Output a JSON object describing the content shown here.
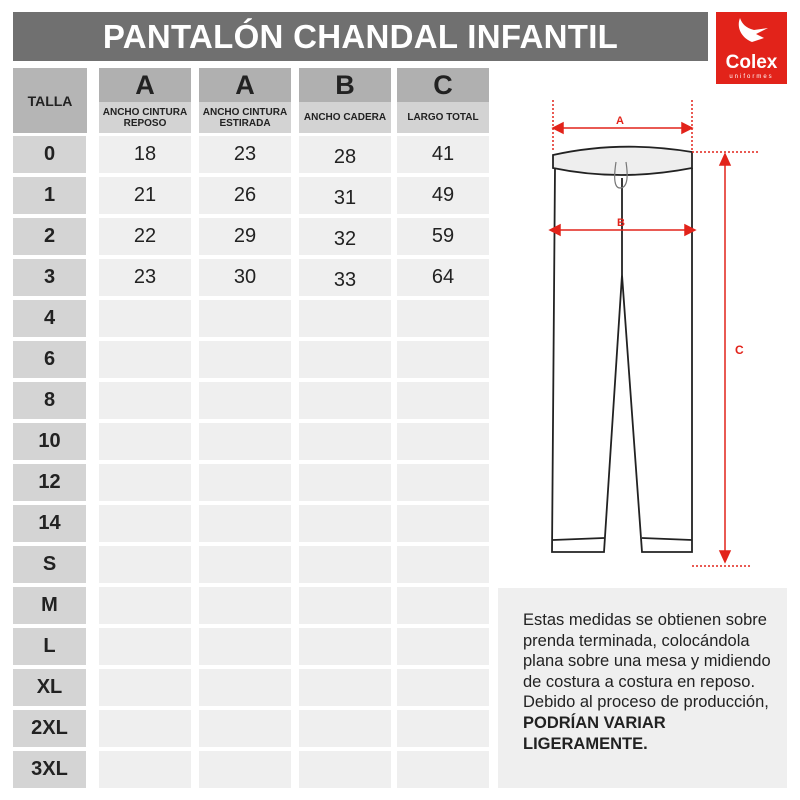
{
  "title": "PANTALÓN CHANDAL INFANTIL",
  "logo": {
    "brand": "Colex",
    "sub": "uniformes",
    "color": "#e2231a"
  },
  "table": {
    "size_header": "TALLA",
    "columns": [
      {
        "letter": "A",
        "label": "ANCHO CINTURA REPOSO"
      },
      {
        "letter": "A",
        "label": "ANCHO CINTURA ESTIRADA"
      },
      {
        "letter": "B",
        "label": "ANCHO CADERA"
      },
      {
        "letter": "C",
        "label": "LARGO TOTAL"
      }
    ],
    "rows": [
      {
        "size": "0",
        "values": [
          "18",
          "23",
          "28",
          "41"
        ]
      },
      {
        "size": "1",
        "values": [
          "21",
          "26",
          "31",
          "49"
        ]
      },
      {
        "size": "2",
        "values": [
          "22",
          "29",
          "32",
          "59"
        ]
      },
      {
        "size": "3",
        "values": [
          "23",
          "30",
          "33",
          "64"
        ]
      },
      {
        "size": "4",
        "values": [
          "",
          "",
          "",
          ""
        ]
      },
      {
        "size": "6",
        "values": [
          "",
          "",
          "",
          ""
        ]
      },
      {
        "size": "8",
        "values": [
          "",
          "",
          "",
          ""
        ]
      },
      {
        "size": "10",
        "values": [
          "",
          "",
          "",
          ""
        ]
      },
      {
        "size": "12",
        "values": [
          "",
          "",
          "",
          ""
        ]
      },
      {
        "size": "14",
        "values": [
          "",
          "",
          "",
          ""
        ]
      },
      {
        "size": "S",
        "values": [
          "",
          "",
          "",
          ""
        ]
      },
      {
        "size": "M",
        "values": [
          "",
          "",
          "",
          ""
        ]
      },
      {
        "size": "L",
        "values": [
          "",
          "",
          "",
          ""
        ]
      },
      {
        "size": "XL",
        "values": [
          "",
          "",
          "",
          ""
        ]
      },
      {
        "size": "2XL",
        "values": [
          "",
          "",
          "",
          ""
        ]
      },
      {
        "size": "3XL",
        "values": [
          "",
          "",
          "",
          ""
        ]
      }
    ]
  },
  "diagram": {
    "labels": {
      "a": "A",
      "b": "B",
      "c": "C"
    },
    "accent": "#e2231a"
  },
  "note": {
    "text": "Estas medidas se obtienen sobre prenda terminada, colocándola plana sobre una mesa y midiendo de costura a costura en reposo. Debido al proceso de producción, ",
    "bold": "PODRÍAN VARIAR LIGERAMENTE."
  }
}
